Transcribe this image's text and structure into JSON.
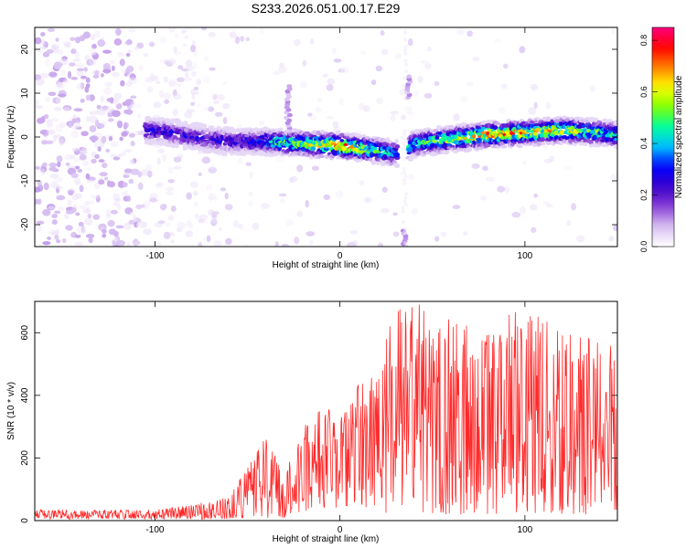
{
  "figure": {
    "title": "S233.2026.051.00.17.E29"
  },
  "chart_data": [
    {
      "type": "heatmap",
      "xlabel": "Height of straight line (km)",
      "ylabel": "Frequency (Hz)",
      "xlim": [
        -165,
        150
      ],
      "ylim": [
        -25,
        25
      ],
      "x_ticks": [
        -100,
        0,
        100
      ],
      "y_ticks": [
        -20,
        -10,
        0,
        10,
        20
      ],
      "colorbar": {
        "label": "Normalized spectral amplitude",
        "range": [
          0,
          0.85
        ],
        "ticks": [
          0.0,
          0.2,
          0.4,
          0.6,
          0.8
        ],
        "colormap": [
          "#ffffff",
          "#d9c2f2",
          "#8a3fd6",
          "#3a00c8",
          "#0000ff",
          "#00bfff",
          "#00ffa0",
          "#7fff00",
          "#ffff00",
          "#ff8000",
          "#ff0000",
          "#ff007f"
        ]
      },
      "band": {
        "x": [
          -100,
          -80,
          -60,
          -40,
          -20,
          0,
          20,
          33,
          40,
          60,
          80,
          100,
          120,
          140,
          150
        ],
        "center_freq": [
          1.5,
          0,
          -1,
          -1,
          -1.5,
          -2,
          -3,
          -4,
          -1.5,
          -0.5,
          0.5,
          1,
          1.5,
          1,
          0.5
        ],
        "peak_amplitude": [
          0.35,
          0.35,
          0.35,
          0.45,
          0.6,
          0.8,
          0.55,
          0.4,
          0.5,
          0.6,
          0.75,
          0.7,
          0.65,
          0.55,
          0.5
        ]
      },
      "gap_stripe": {
        "x": 35,
        "freq_range": [
          -25,
          25
        ]
      },
      "spots": [
        {
          "x": -28,
          "freq_range": [
            2,
            12
          ]
        },
        {
          "x": 37,
          "freq_range": [
            9,
            14
          ]
        },
        {
          "x": 35,
          "freq_range": [
            -25,
            -21
          ]
        }
      ],
      "grid": false
    },
    {
      "type": "line",
      "color": "#ff2a2a",
      "xlabel": "Height of straight line (km)",
      "ylabel": "SNR (10 * v/v)",
      "xlim": [
        -165,
        150
      ],
      "ylim": [
        0,
        700
      ],
      "x_ticks": [
        -100,
        0,
        100
      ],
      "y_ticks": [
        0,
        200,
        400,
        600
      ],
      "envelope": {
        "x": [
          -165,
          -100,
          -80,
          -60,
          -50,
          -40,
          -30,
          -20,
          -10,
          0,
          10,
          20,
          30,
          40,
          60,
          80,
          100,
          120,
          150
        ],
        "upper": [
          35,
          35,
          50,
          80,
          170,
          270,
          160,
          300,
          380,
          330,
          440,
          500,
          690,
          700,
          650,
          600,
          700,
          600,
          610
        ],
        "lower": [
          5,
          5,
          5,
          5,
          5,
          5,
          10,
          20,
          30,
          40,
          50,
          30,
          20,
          20,
          20,
          20,
          20,
          20,
          20
        ]
      },
      "grid": false
    }
  ]
}
